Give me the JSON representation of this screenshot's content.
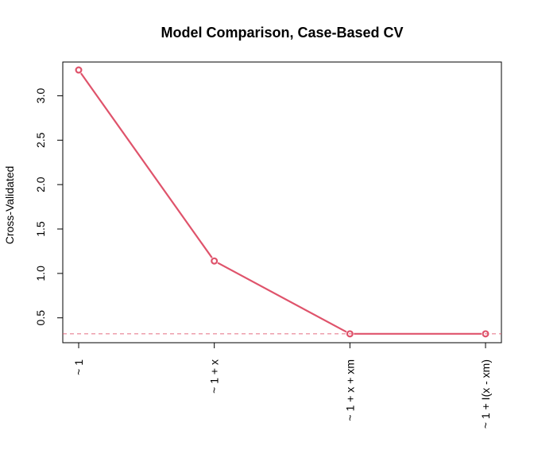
{
  "chart_data": {
    "type": "line",
    "title": "Model Comparison, Case-Based CV",
    "xlabel": "",
    "ylabel": "Cross-Validated",
    "categories": [
      "~ 1",
      "~ 1 + x",
      "~ 1 + x + xm",
      "~ 1 + I(x - xm)"
    ],
    "series": [
      {
        "values": [
          3.29,
          1.14,
          0.32,
          0.32
        ]
      }
    ],
    "reference_line": 0.32,
    "yticks": [
      "0.5",
      "1.0",
      "1.5",
      "2.0",
      "2.5",
      "3.0"
    ],
    "ylim": [
      0.22,
      3.38
    ],
    "grid": false,
    "colors": {
      "series": "#DF536B",
      "axis": "#000000"
    }
  }
}
